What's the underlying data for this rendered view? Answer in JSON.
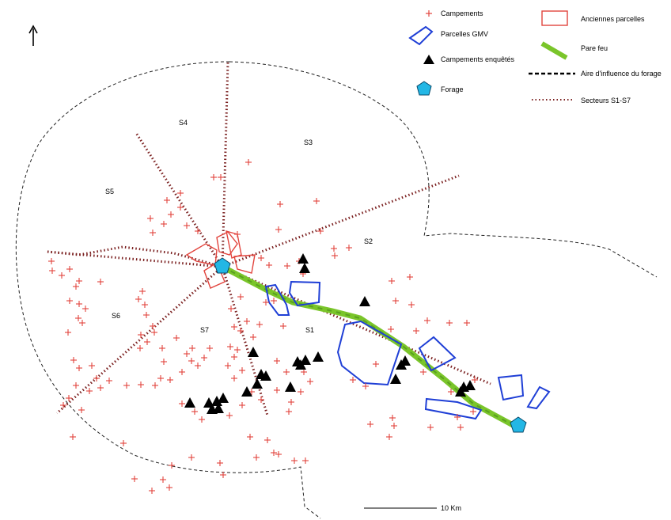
{
  "legend": {
    "campements": "Campements",
    "parcelles_gmv": "Parcelles GMV",
    "campements_enquetes": "Campements enquêtés",
    "forage": "Forage",
    "anciennes_parcelles": "Anciennes parcelles",
    "pare_feu": "Pare feu",
    "aire_influence": "Aire d'influence du forage",
    "secteurs": "Secteurs S1-S7"
  },
  "sectors": [
    "S1",
    "S2",
    "S3",
    "S4",
    "S5",
    "S6",
    "S7"
  ],
  "scale": {
    "label": "10 Km"
  },
  "north_arrow": "↑",
  "colors": {
    "campement": "#e2443d",
    "parcelle_gmv": "#1f3fd6",
    "ancienne_parcelle": "#e2443d",
    "pare_feu_green": "#7ac52a",
    "forage": "#23b7e5",
    "sector_line": "#7a1f1f"
  }
}
